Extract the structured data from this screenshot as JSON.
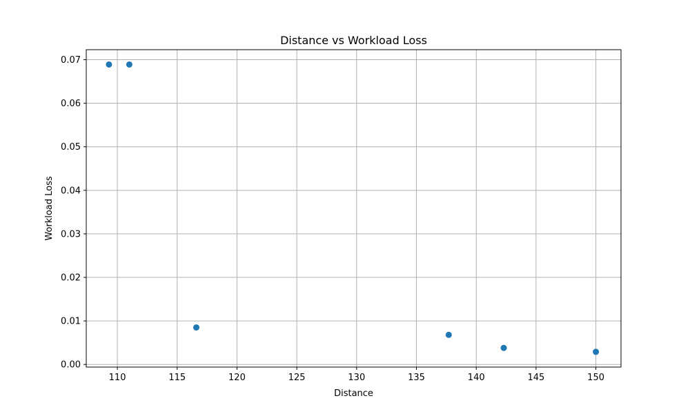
{
  "chart_data": {
    "type": "scatter",
    "title": "Distance vs Workload Loss",
    "xlabel": "Distance",
    "ylabel": "Workload Loss",
    "x": [
      109.3,
      111.0,
      116.6,
      137.7,
      142.3,
      150.0
    ],
    "y": [
      0.0689,
      0.0689,
      0.0085,
      0.0068,
      0.0038,
      0.0029
    ],
    "xlim": [
      107.4,
      152.1
    ],
    "ylim": [
      -0.0006,
      0.0723
    ],
    "xticks": [
      110,
      115,
      120,
      125,
      130,
      135,
      140,
      145,
      150
    ],
    "yticks": [
      0.0,
      0.01,
      0.02,
      0.03,
      0.04,
      0.05,
      0.06,
      0.07
    ],
    "xtick_labels": [
      "110",
      "115",
      "120",
      "125",
      "130",
      "135",
      "140",
      "145",
      "150"
    ],
    "ytick_labels": [
      "0.00",
      "0.01",
      "0.02",
      "0.03",
      "0.04",
      "0.05",
      "0.06",
      "0.07"
    ],
    "grid": true,
    "marker_color": "#1f77b4",
    "grid_color": "#b0b0b0"
  }
}
